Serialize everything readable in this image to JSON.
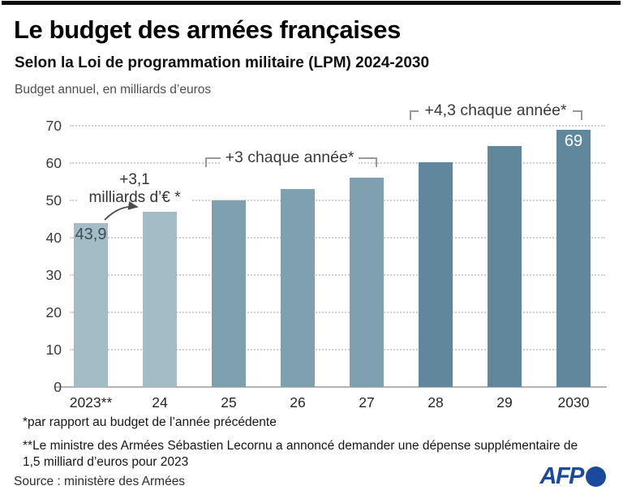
{
  "header": {
    "title": "Le budget des armées françaises",
    "subtitle": "Selon la Loi de programmation militaire (LPM) 2024-2030",
    "units_label": "Budget annuel, en milliards d’euros"
  },
  "chart_data": {
    "type": "bar",
    "title": "Le budget des armées françaises",
    "xlabel": "",
    "ylabel": "Budget annuel, en milliards d’euros",
    "categories": [
      "2023**",
      "24",
      "25",
      "26",
      "27",
      "28",
      "29",
      "2030"
    ],
    "values": [
      43.9,
      47,
      50,
      53,
      56,
      60.3,
      64.6,
      69
    ],
    "bar_colors": [
      "#a4bcc6",
      "#a4bcc6",
      "#7fa0af",
      "#7fa0af",
      "#7fa0af",
      "#61879c",
      "#61879c",
      "#61879c"
    ],
    "ylim": [
      0,
      70
    ],
    "yticks": [
      0,
      10,
      20,
      30,
      40,
      50,
      60,
      70
    ],
    "grid": "horizontal dotted",
    "legend": "none",
    "value_labels": [
      {
        "index": 0,
        "text": "43,9",
        "color": "#3f4d55"
      },
      {
        "index": 7,
        "text": "69",
        "color": "#ffffff"
      }
    ],
    "annotations": [
      {
        "type": "arrow-note",
        "text": "+3,1 milliards d’€ *",
        "target": "top of bar 24"
      },
      {
        "type": "bracket",
        "text": "+3 chaque année*",
        "span": "bars 25 to 27"
      },
      {
        "type": "bracket",
        "text": "+4,3 chaque année*",
        "span": "bars 28 to 2030"
      }
    ]
  },
  "annotations": {
    "growth_note": {
      "line1": "+3,1",
      "line2": "milliards d’€ *"
    },
    "bracket_3": "+3 chaque année*",
    "bracket_43": "+4,3 chaque année*"
  },
  "footnotes": {
    "single_star": "*par rapport au budget de l’année précédente",
    "double_star": "**Le ministre des Armées Sébastien Lecornu a annoncé demander une dépense supplémentaire de 1,5 milliard d’euros pour 2023",
    "source": "Source : ministère des Armées"
  },
  "branding": {
    "logo_text": "AFP",
    "logo_color": "#1b4a9b"
  },
  "colors": {
    "bar_light": "#a4bcc6",
    "bar_medium": "#7fa0af",
    "bar_dark": "#61879c",
    "grid": "#cfcfcf",
    "topbar": "#0d0d0d"
  }
}
